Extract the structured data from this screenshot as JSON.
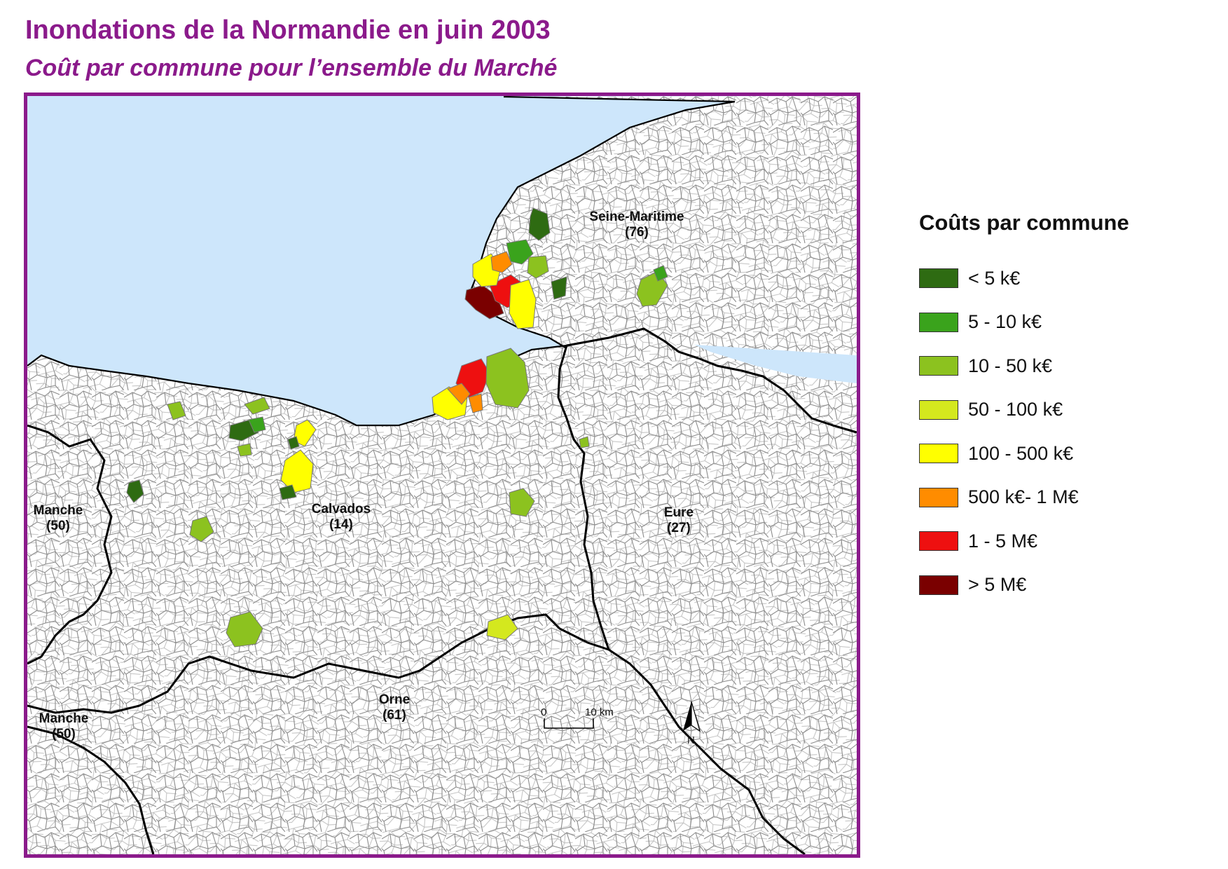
{
  "title": "Inondations de la Normandie en juin 2003",
  "subtitle": "Coût par commune pour l’ensemble du Marché",
  "colors": {
    "frame": "#8b1a8b",
    "sea": "#cde6fb",
    "land": "#ffffff",
    "commune_border": "#8c8c8c",
    "dept_border": "#000000"
  },
  "map": {
    "departments": [
      {
        "name": "Seine-Maritime",
        "code": "(76)"
      },
      {
        "name": "Calvados",
        "code": "(14)"
      },
      {
        "name": "Manche",
        "code": "(50)"
      },
      {
        "name": "Eure",
        "code": "(27)"
      },
      {
        "name": "Orne",
        "code": "(61)"
      },
      {
        "name": "Manche",
        "code": "(50)"
      }
    ],
    "scale": {
      "start": "0",
      "end": "10 km"
    },
    "north_label": "N"
  },
  "legend": {
    "title": "Coûts par commune",
    "classes": [
      {
        "label": "< 5 k€",
        "color": "#2e6b12"
      },
      {
        "label": "5 - 10 k€",
        "color": "#3aa31c"
      },
      {
        "label": "10 - 50 k€",
        "color": "#8cc21f"
      },
      {
        "label": "50 - 100 k€",
        "color": "#d4e81e"
      },
      {
        "label": "100 - 500 k€",
        "color": "#ffff00"
      },
      {
        "label": "500 k€- 1 M€",
        "color": "#ff8c00"
      },
      {
        "label": "1 - 5 M€",
        "color": "#ee1010"
      },
      {
        "label": "> 5 M€",
        "color": "#7a0000"
      }
    ]
  }
}
